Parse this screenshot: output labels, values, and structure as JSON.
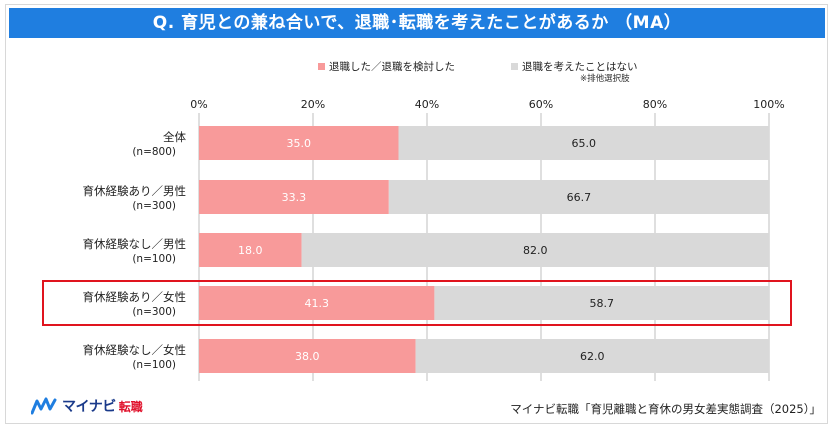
{
  "title": "Q. 育児との兼ね合いで、退職･転職を考えたことがあるか （MA）",
  "legend": {
    "item1": "退職した／退職を検討した",
    "item2": "退職を考えたことはない",
    "note": "※排他選択肢"
  },
  "colors": {
    "series1": "#f89a9a",
    "series2": "#d9d9d9",
    "title_bg": "#1f7ee0",
    "highlight": "#e0141e"
  },
  "chart_data": {
    "type": "bar",
    "orientation": "horizontal",
    "stacked": true,
    "title": "Q. 育児との兼ね合いで、退職･転職を考えたことがあるか （MA）",
    "xlim": [
      0,
      100
    ],
    "xticks": [
      "0%",
      "20%",
      "40%",
      "60%",
      "80%",
      "100%"
    ],
    "categories": [
      {
        "label": "全体",
        "n": "(n=800)"
      },
      {
        "label": "育休経験あり／男性",
        "n": "(n=300)"
      },
      {
        "label": "育休経験なし／男性",
        "n": "(n=100)"
      },
      {
        "label": "育休経験あり／女性",
        "n": "(n=300)"
      },
      {
        "label": "育休経験なし／女性",
        "n": "(n=100)"
      }
    ],
    "series": [
      {
        "name": "退職した／退職を検討した",
        "values": [
          35.0,
          33.3,
          18.0,
          41.3,
          38.0
        ]
      },
      {
        "name": "退職を考えたことはない",
        "values": [
          65.0,
          66.7,
          82.0,
          58.7,
          62.0
        ]
      }
    ],
    "highlighted_category": "育休経験あり／女性"
  },
  "source": "マイナビ転職「育児離職と育休の男女差実態調査（2025）」",
  "logo": {
    "name": "マイナビ",
    "sub": "転職"
  }
}
